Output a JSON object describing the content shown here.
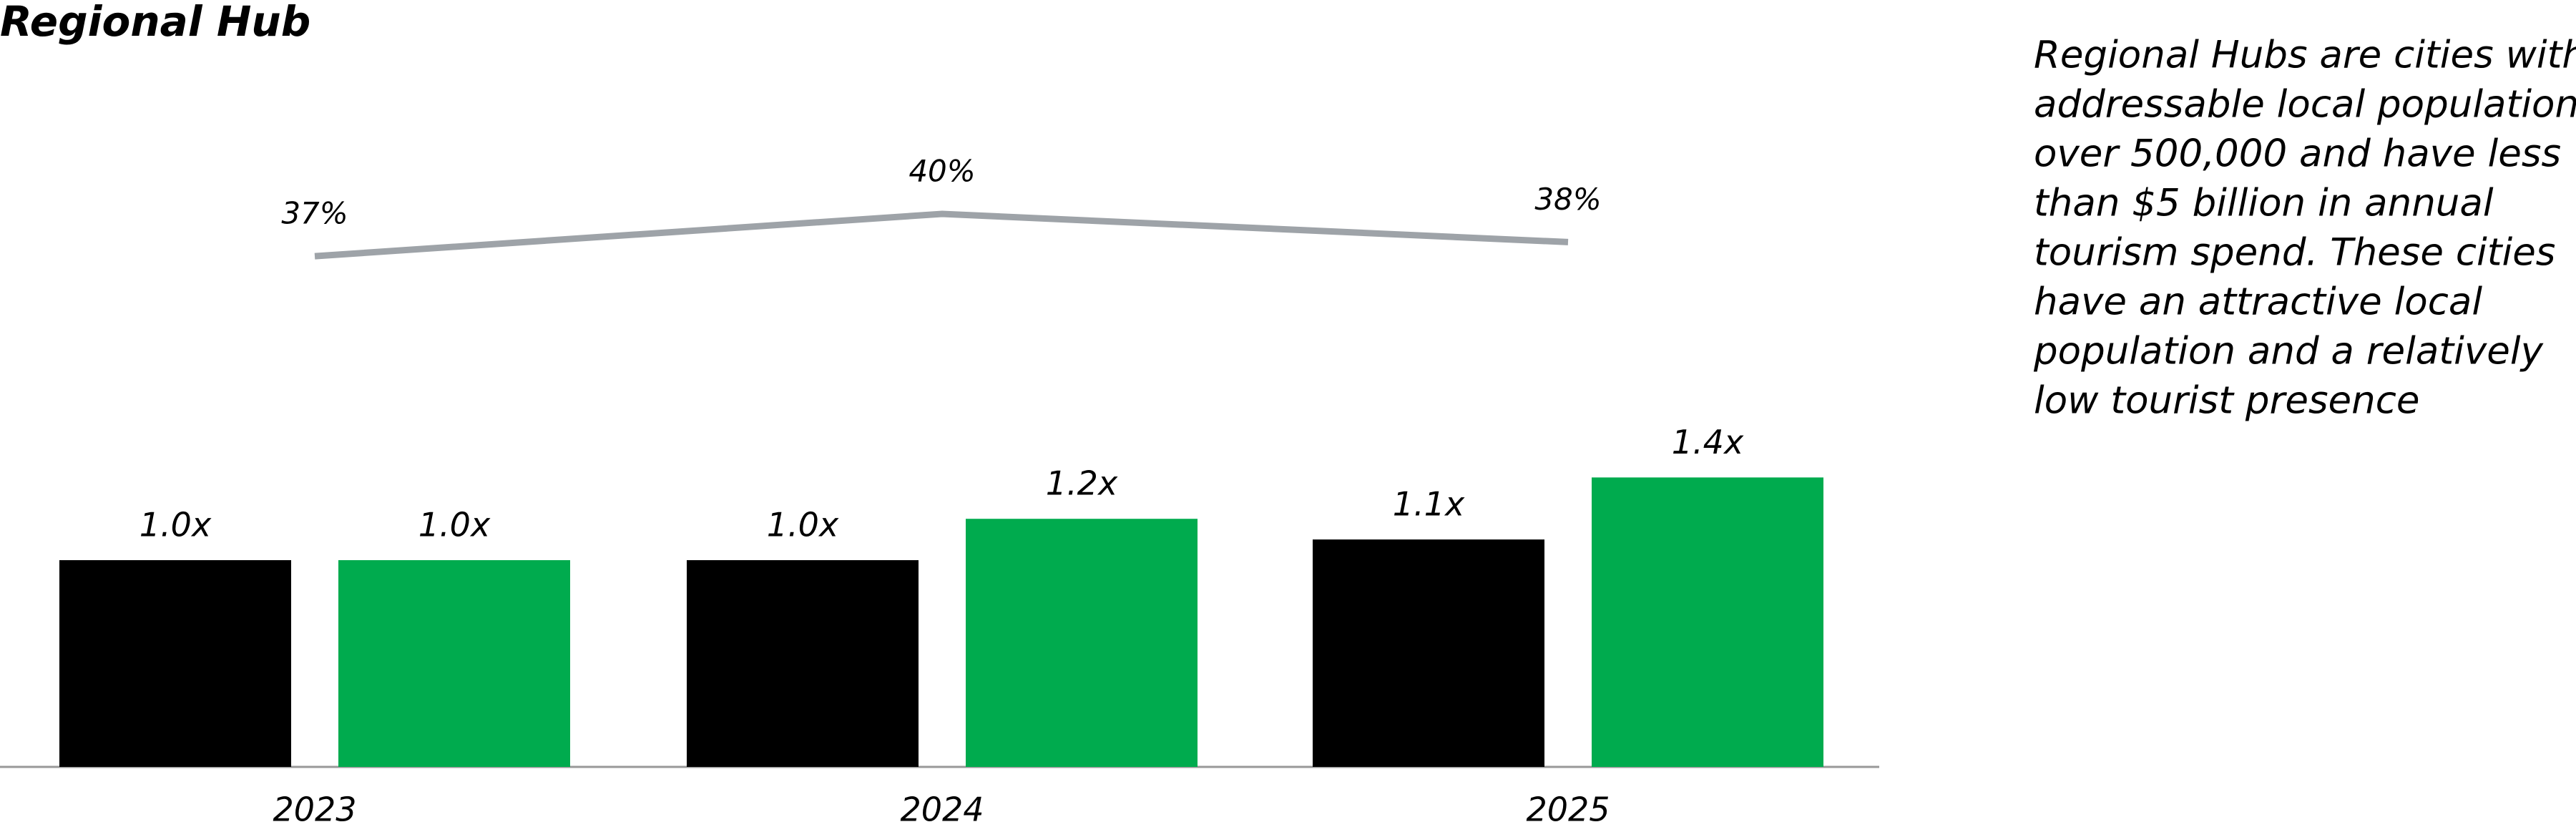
{
  "chart_data": {
    "type": "bar",
    "title": "Regional Hub",
    "categories": [
      "2023",
      "2024",
      "2025"
    ],
    "series": [
      {
        "color": "#000000",
        "values": [
          1.0,
          1.0,
          1.1
        ],
        "value_labels": [
          "1.0x",
          "1.0x",
          "1.1x"
        ]
      },
      {
        "color": "#00ab4e",
        "values": [
          1.0,
          1.2,
          1.4
        ],
        "value_labels": [
          "1.0x",
          "1.2x",
          "1.4x"
        ]
      }
    ],
    "line": {
      "type": "line",
      "color": "#9ea3a8",
      "values": [
        37,
        40,
        38
      ],
      "value_labels": [
        "37%",
        "40%",
        "38%"
      ]
    },
    "annotation": [
      "Regional Hubs are cities with",
      "addressable local populations",
      "over 500,000 and have less",
      "than $5 billion in annual",
      "tourism spend. These cities",
      "have an attractive local",
      "population and a relatively",
      "low tourist presence"
    ]
  }
}
